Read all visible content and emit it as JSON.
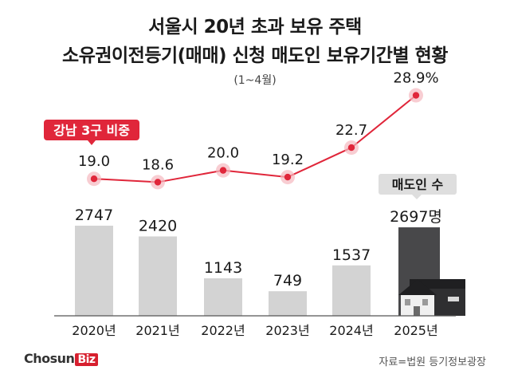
{
  "header": {
    "title_line1": "서울시 20년 초과 보유 주택",
    "title_line2": "소유권이전등기(매매) 신청 매도인 보유기간별 현황",
    "subtitle": "(1~4월)"
  },
  "footer": {
    "logo_main": "Chosun",
    "logo_accent": "Biz",
    "source": "자료=법원 등기정보광장"
  },
  "colors": {
    "bar": "#d3d3d3",
    "bar_highlight": "#48484a",
    "line": "#e0263a",
    "point_halo": "#f5b8bf",
    "axis": "#555555",
    "tag_red": "#e0263a",
    "tag_grey": "#dedede"
  },
  "chart_data": {
    "type": "bar+line",
    "categories": [
      "2020년",
      "2021년",
      "2022년",
      "2023년",
      "2024년",
      "2025년"
    ],
    "bar_series": {
      "name": "매도인 수",
      "values": [
        2747,
        2420,
        1143,
        749,
        1537,
        2697
      ],
      "labels": [
        "2747",
        "2420",
        "1143",
        "749",
        "1537",
        "2697명"
      ],
      "highlight_index": 5
    },
    "line_series": {
      "name": "강남 3구 비중",
      "values": [
        19.0,
        18.6,
        20.0,
        19.2,
        22.7,
        28.9
      ],
      "labels": [
        "19.0",
        "18.6",
        "20.0",
        "19.2",
        "22.7",
        "28.9%"
      ]
    }
  }
}
